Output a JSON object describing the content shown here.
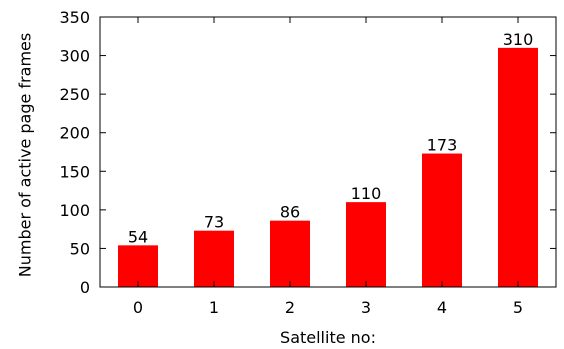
{
  "chart_data": {
    "type": "bar",
    "categories": [
      "0",
      "1",
      "2",
      "3",
      "4",
      "5"
    ],
    "values": [
      54,
      73,
      86,
      110,
      173,
      310
    ],
    "data_labels": [
      "54",
      "73",
      "86",
      "110",
      "173",
      "310"
    ],
    "xlabel": "Satellite no:",
    "ylabel": "Number of active page frames",
    "ylim": [
      0,
      350
    ],
    "yticks": [
      0,
      50,
      100,
      150,
      200,
      250,
      300,
      350
    ],
    "ytick_labels": [
      "0",
      "50",
      "100",
      "150",
      "200",
      "250",
      "300",
      "350"
    ],
    "bar_color": "#ff0000",
    "grid": false,
    "legend": "none"
  }
}
